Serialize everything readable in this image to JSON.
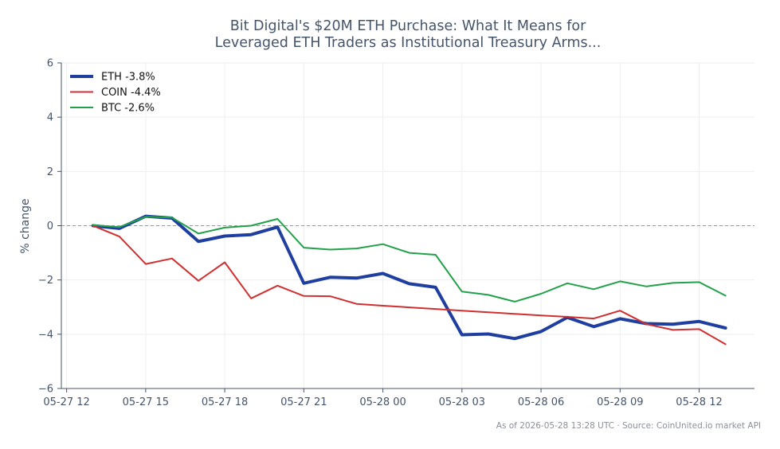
{
  "chart_data": {
    "type": "line",
    "title_lines": [
      "Bit Digital's $20M ETH Purchase: What It Means for",
      "Leveraged ETH Traders as Institutional Treasury Arms..."
    ],
    "xlabel": "",
    "ylabel": "% change",
    "ylim": [
      -6,
      6
    ],
    "yticks": [
      -6,
      -4,
      -2,
      0,
      2,
      4,
      6
    ],
    "ytick_labels": [
      "−6",
      "−4",
      "−2",
      "0",
      "2",
      "4",
      "6"
    ],
    "x_hours": [
      1,
      2,
      3,
      4,
      5,
      6,
      7,
      8,
      9,
      10,
      11,
      12,
      13,
      14,
      15,
      16,
      17,
      18,
      19,
      20,
      21,
      22,
      23,
      24,
      25
    ],
    "xticks": [
      0,
      3,
      6,
      9,
      12,
      15,
      18,
      21,
      24
    ],
    "xtick_labels": [
      "05-27 12",
      "05-27 15",
      "05-27 18",
      "05-27 21",
      "05-28 00",
      "05-28 03",
      "05-28 06",
      "05-28 09",
      "05-28 12"
    ],
    "xlim": [
      -0.2,
      26.1
    ],
    "grid": true,
    "zero_line": true,
    "legend_position": "top-left",
    "series": [
      {
        "name": "ETH -3.8%",
        "color": "#1f3fa0",
        "width": 4,
        "values": [
          0.0,
          -0.1,
          0.35,
          0.28,
          -0.58,
          -0.38,
          -0.33,
          -0.05,
          -2.12,
          -1.9,
          -1.93,
          -1.76,
          -2.14,
          -2.27,
          -4.02,
          -3.99,
          -4.16,
          -3.9,
          -3.38,
          -3.72,
          -3.43,
          -3.61,
          -3.63,
          -3.53,
          -3.77
        ]
      },
      {
        "name": "COIN -4.4%",
        "color": "#d03030",
        "width": 2,
        "values": [
          0.0,
          -0.4,
          -1.41,
          -1.21,
          -2.03,
          -1.35,
          -2.68,
          -2.21,
          -2.59,
          -2.6,
          -2.88,
          -2.95,
          -3.01,
          -3.07,
          -3.13,
          -3.19,
          -3.25,
          -3.31,
          -3.36,
          -3.42,
          -3.13,
          -3.63,
          -3.84,
          -3.81,
          -4.37
        ]
      },
      {
        "name": "BTC -2.6%",
        "color": "#22a04a",
        "width": 2,
        "values": [
          0.02,
          -0.05,
          0.33,
          0.3,
          -0.29,
          -0.07,
          0.0,
          0.25,
          -0.81,
          -0.88,
          -0.84,
          -0.68,
          -1.0,
          -1.07,
          -2.43,
          -2.55,
          -2.8,
          -2.51,
          -2.12,
          -2.34,
          -2.05,
          -2.24,
          -2.11,
          -2.08,
          -2.58
        ]
      }
    ]
  },
  "footer": "As of 2026-05-28 13:28 UTC · Source: CoinUnited.io market API",
  "colors": {
    "text": "#44546a",
    "axis": "#44546a",
    "grid": "#eeeeee",
    "zero": "#8a9bb8"
  }
}
